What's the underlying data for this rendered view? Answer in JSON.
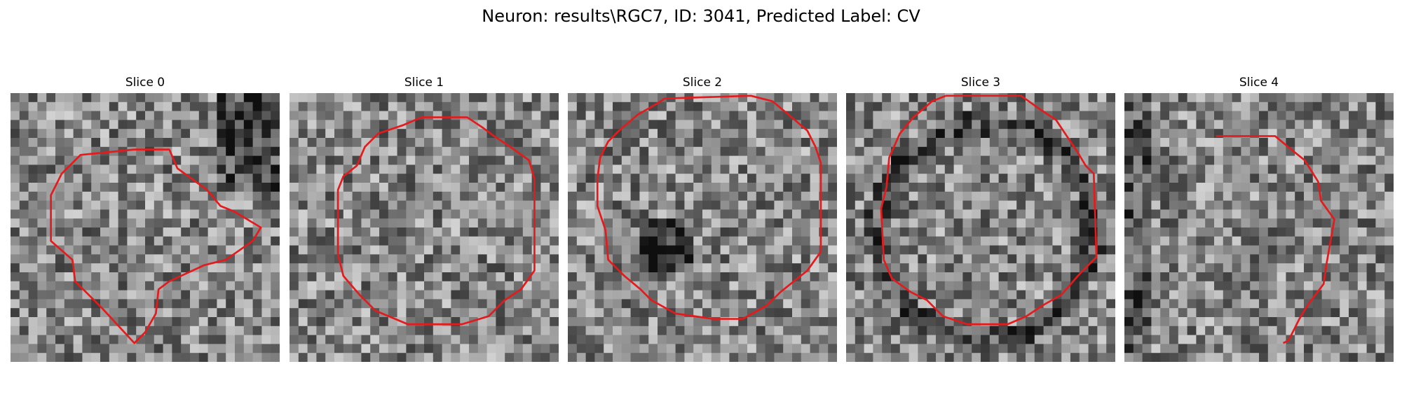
{
  "figure": {
    "title": "Neuron: results\\RGC7, ID: 3041, Predicted Label: CV"
  },
  "image_style": {
    "colormap": "grayscale",
    "outline_color": "#e41a1c"
  },
  "slices": [
    {
      "title": "Slice 0",
      "outline": [
        [
          4.6,
          2.1
        ],
        [
          5.9,
          2.1
        ],
        [
          6.2,
          2.8
        ],
        [
          7.3,
          3.6
        ],
        [
          7.8,
          4.2
        ],
        [
          8.3,
          4.4
        ],
        [
          9.3,
          5.0
        ],
        [
          9.0,
          5.5
        ],
        [
          8.0,
          6.2
        ],
        [
          7.2,
          6.4
        ],
        [
          5.9,
          7.0
        ],
        [
          5.5,
          7.3
        ],
        [
          5.4,
          8.2
        ],
        [
          5.0,
          8.9
        ],
        [
          4.6,
          9.3
        ],
        [
          3.4,
          8.0
        ],
        [
          2.4,
          7.0
        ],
        [
          2.3,
          6.2
        ],
        [
          1.5,
          5.5
        ],
        [
          1.5,
          3.8
        ],
        [
          1.9,
          3.0
        ],
        [
          2.3,
          2.6
        ],
        [
          2.6,
          2.3
        ]
      ]
    },
    {
      "title": "Slice 1",
      "outline": [
        [
          4.9,
          0.9
        ],
        [
          6.6,
          0.9
        ],
        [
          7.2,
          1.3
        ],
        [
          7.6,
          1.6
        ],
        [
          8.2,
          2.0
        ],
        [
          8.9,
          2.5
        ],
        [
          9.1,
          3.2
        ],
        [
          9.1,
          6.6
        ],
        [
          8.6,
          7.3
        ],
        [
          8.0,
          7.7
        ],
        [
          7.4,
          8.3
        ],
        [
          6.4,
          8.6
        ],
        [
          4.4,
          8.6
        ],
        [
          3.2,
          8.1
        ],
        [
          2.6,
          7.5
        ],
        [
          2.0,
          6.8
        ],
        [
          1.8,
          6.0
        ],
        [
          1.8,
          3.6
        ],
        [
          2.0,
          3.1
        ],
        [
          2.5,
          2.7
        ],
        [
          2.8,
          2.0
        ],
        [
          3.3,
          1.5
        ],
        [
          4.2,
          1.2
        ]
      ]
    },
    {
      "title": "Slice 2",
      "outline": [
        [
          3.6,
          0.2
        ],
        [
          3.3,
          0.4
        ],
        [
          2.6,
          0.8
        ],
        [
          1.9,
          1.4
        ],
        [
          1.5,
          1.8
        ],
        [
          1.2,
          2.4
        ],
        [
          1.1,
          3.2
        ],
        [
          1.1,
          4.2
        ],
        [
          1.4,
          5.1
        ],
        [
          1.5,
          6.2
        ],
        [
          2.1,
          6.8
        ],
        [
          2.7,
          7.3
        ],
        [
          3.1,
          7.7
        ],
        [
          4.0,
          8.2
        ],
        [
          5.4,
          8.4
        ],
        [
          6.5,
          8.4
        ],
        [
          7.4,
          7.9
        ],
        [
          7.9,
          7.4
        ],
        [
          8.4,
          7.0
        ],
        [
          8.9,
          6.6
        ],
        [
          9.4,
          5.9
        ],
        [
          9.4,
          2.6
        ],
        [
          9.2,
          2.0
        ],
        [
          8.9,
          1.4
        ],
        [
          8.2,
          0.8
        ],
        [
          7.6,
          0.3
        ],
        [
          6.8,
          0.1
        ]
      ]
    },
    {
      "title": "Slice 3",
      "outline": [
        [
          3.7,
          0.1
        ],
        [
          3.2,
          0.3
        ],
        [
          2.5,
          0.9
        ],
        [
          2.0,
          1.5
        ],
        [
          1.6,
          2.4
        ],
        [
          1.5,
          3.5
        ],
        [
          1.3,
          4.3
        ],
        [
          1.4,
          6.2
        ],
        [
          1.7,
          6.9
        ],
        [
          2.4,
          7.4
        ],
        [
          3.0,
          7.7
        ],
        [
          3.6,
          8.3
        ],
        [
          4.5,
          8.6
        ],
        [
          6.0,
          8.6
        ],
        [
          6.7,
          8.3
        ],
        [
          7.3,
          7.9
        ],
        [
          8.0,
          7.5
        ],
        [
          8.7,
          6.7
        ],
        [
          9.3,
          6.1
        ],
        [
          9.2,
          3.0
        ],
        [
          8.9,
          2.7
        ],
        [
          8.6,
          2.2
        ],
        [
          8.2,
          1.6
        ],
        [
          7.8,
          1.0
        ],
        [
          7.2,
          0.6
        ],
        [
          6.5,
          0.1
        ]
      ]
    },
    {
      "title": "Slice 4",
      "outline": [
        [
          3.4,
          1.6
        ],
        [
          5.6,
          1.6
        ],
        [
          6.2,
          2.1
        ],
        [
          6.7,
          2.5
        ],
        [
          7.2,
          3.3
        ],
        [
          7.3,
          4.0
        ],
        [
          7.8,
          4.7
        ],
        [
          7.5,
          6.4
        ],
        [
          7.4,
          7.1
        ],
        [
          6.8,
          7.9
        ],
        [
          6.5,
          8.4
        ],
        [
          6.1,
          9.2
        ],
        [
          5.9,
          9.3
        ]
      ]
    }
  ]
}
